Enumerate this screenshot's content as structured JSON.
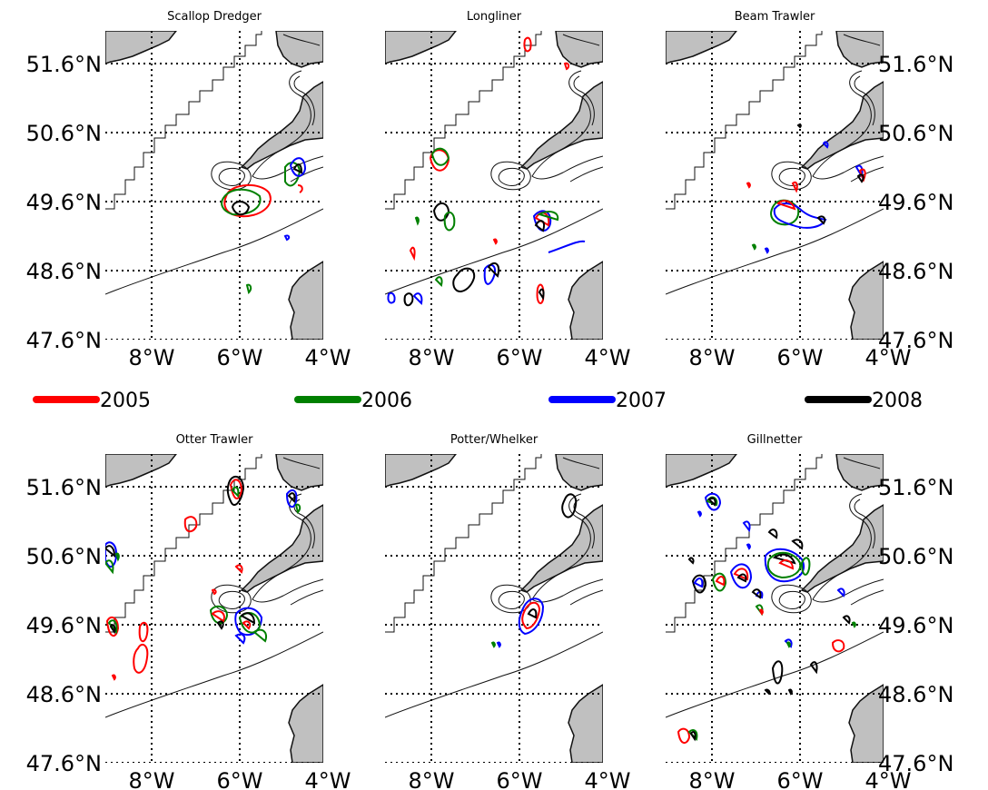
{
  "colors": {
    "2005": "#ff0000",
    "2006": "#008000",
    "2007": "#0000ff",
    "2008": "#000000",
    "land": "#c0c0c0"
  },
  "legend": [
    {
      "label": "2005",
      "color": "#ff0000"
    },
    {
      "label": "2006",
      "color": "#008000"
    },
    {
      "label": "2007",
      "color": "#0000ff"
    },
    {
      "label": "2008",
      "color": "#000000"
    }
  ],
  "axes": {
    "lon_ticks": [
      "8°W",
      "6°W",
      "4°W"
    ],
    "lat_ticks": [
      "51.6°N",
      "50.6°N",
      "49.6°N",
      "48.6°N",
      "47.6°N"
    ],
    "lon_range": [
      -9,
      -3.9
    ],
    "lat_range": [
      47.6,
      52.0
    ]
  },
  "panels": [
    {
      "title": "Scallop Dredger"
    },
    {
      "title": "Longliner"
    },
    {
      "title": "Beam Trawler"
    },
    {
      "title": "Otter Trawler"
    },
    {
      "title": "Potter/Whelker"
    },
    {
      "title": "Gillnetter"
    }
  ]
}
